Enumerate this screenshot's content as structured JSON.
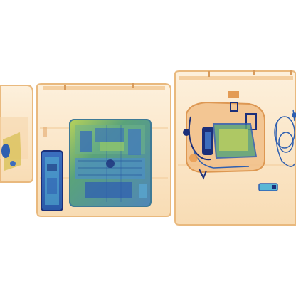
{
  "scene": {
    "kind": "x-ray baggage scan",
    "background": "#ffffff",
    "colors": {
      "tray_fill": "#fbe6c8",
      "tray_edge": "#e9b97e",
      "tray_shade": "#f4cfa0",
      "organic_orange": "#f0a25a",
      "metal_green": "#5aa37a",
      "metal_blue": "#2f5fb0",
      "dense_navy": "#1b2f7a",
      "cyan": "#58b7d6",
      "yellow_green": "#c9d65a"
    }
  }
}
